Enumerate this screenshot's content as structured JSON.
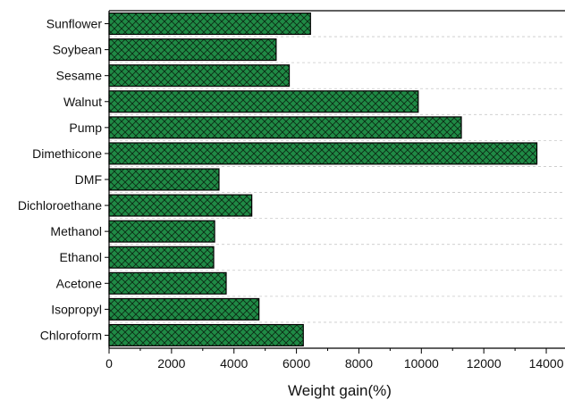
{
  "chart_data": {
    "type": "bar",
    "orientation": "horizontal",
    "categories": [
      "Sunflower",
      "Soybean",
      "Sesame",
      "Walnut",
      "Pump",
      "Dimethicone",
      "DMF",
      "Dichloroethane",
      "Methanol",
      "Ethanol",
      "Acetone",
      "Isopropyl",
      "Chloroform"
    ],
    "values": [
      6450,
      5350,
      5770,
      9900,
      11280,
      13700,
      3520,
      4570,
      3380,
      3350,
      3750,
      4800,
      6220
    ],
    "xlabel": "Weight gain(%)",
    "ylabel": "",
    "xlim": [
      0,
      14600
    ],
    "xticks": [
      0,
      2000,
      4000,
      6000,
      8000,
      10000,
      12000,
      14000
    ],
    "xtick_labels": [
      "0",
      "2000",
      "4000",
      "6000",
      "8000",
      "10000",
      "12000",
      "14000"
    ],
    "grid": "horizontal dashed",
    "bar_color": "#1f8a45",
    "bar_hatch": "crosshatch",
    "edge_color": "#000000"
  }
}
